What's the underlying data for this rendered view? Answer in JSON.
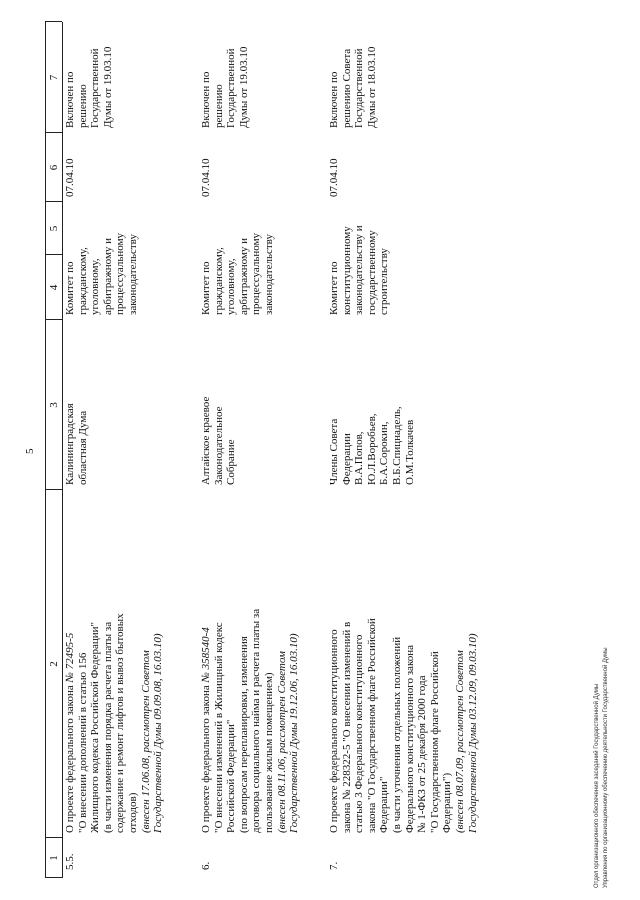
{
  "page_number": "5",
  "table": {
    "column_headers": [
      "1",
      "2",
      "3",
      "4",
      "5",
      "6",
      "7"
    ],
    "rows": [
      {
        "num": "5.5.",
        "bill": [
          {
            "t": "О проекте федерального закона ",
            "it": "№ 72495-5"
          },
          {
            "t": "\"О внесении дополнений в статью 156"
          },
          {
            "t": "Жилищного кодекса Российской Федерации\""
          },
          {
            "t": "(в части изменения порядка расчета платы за"
          },
          {
            "t": "содержание и ремонт лифтов и вывоз бытовых"
          },
          {
            "t": "отходов)"
          },
          {
            "it": "(внесен 17.06.08, рассмотрен Советом"
          },
          {
            "it": "Государственной Думы 09.09.08, 16.03.10)"
          }
        ],
        "author": [
          "Калининградская",
          "областная Дума"
        ],
        "committee": [
          "Комитет по",
          "гражданскому,",
          "уголовному,",
          "арбитражному и",
          "процессуальному",
          "законодательству"
        ],
        "col5": [],
        "date": [
          "07.04.10"
        ],
        "note": [
          "Включен по",
          "решению",
          "Государственной",
          "Думы от 19.03.10"
        ]
      },
      {
        "num": "6.",
        "bill": [
          {
            "t": "О проекте федерального закона ",
            "it": "№ 358540-4"
          },
          {
            "t": "\"О внесении изменений в Жилищный кодекс"
          },
          {
            "t": "Российской Федерации\""
          },
          {
            "t": "(по вопросам перепланировки, изменения"
          },
          {
            "t": "договора социального найма и расчета платы за"
          },
          {
            "t": "пользование жилым помещением)"
          },
          {
            "it": "(внесен 08.11.06, рассмотрен Советом"
          },
          {
            "it": "Государственной Думы 19.12.06, 16.03.10)"
          }
        ],
        "author": [
          "Алтайское краевое",
          "Законодательное",
          "Собрание"
        ],
        "committee": [
          "Комитет по",
          "гражданскому,",
          "уголовному,",
          "арбитражному и",
          "процессуальному",
          "законодательству"
        ],
        "col5": [],
        "date": [
          "07.04.10"
        ],
        "note": [
          "Включен по",
          "решению",
          "Государственной",
          "Думы от 19.03.10"
        ]
      },
      {
        "num": "7.",
        "bill": [
          {
            "t": "О проекте федерального конституционного"
          },
          {
            "t": "закона № 228322-5 \"О внесении изменений в"
          },
          {
            "t": "статью 3 Федерального конституционного"
          },
          {
            "t": "закона \"О Государственном флаге Российской"
          },
          {
            "t": "Федерации\""
          },
          {
            "t": "(в части уточнения отдельных положений"
          },
          {
            "t": "Федерального конституционного закона"
          },
          {
            "t": "№ 1-ФКЗ от 25 декабря 2000 года"
          },
          {
            "t": "\"О Государственном флаге Российской"
          },
          {
            "t": "Федерации\")"
          },
          {
            "it": "(внесен 08.07.09, рассмотрен Советом"
          },
          {
            "it": "Государственной Думы 03.12.09, 09.03.10)"
          }
        ],
        "author": [
          "Члены Совета",
          "Федерации",
          "В.А.Попов,",
          "Ю.Л.Воробьев,",
          "Б.А.Сорокин,",
          "В.Б.Спицнадель,",
          "О.М.Толкачев"
        ],
        "committee": [
          "Комитет по",
          "конституционному",
          "законодательству и",
          "государственному",
          "строительству"
        ],
        "col5": [],
        "date": [
          "07.04.10"
        ],
        "note": [
          "Включен по",
          "решению Совета",
          "Государственной",
          "Думы от 18.03.10"
        ]
      }
    ]
  },
  "footer": [
    "Отдел организационного обеспечения заседаний Государственной Думы",
    "Управления по организационному обеспечению деятельности Государственной Думы"
  ]
}
